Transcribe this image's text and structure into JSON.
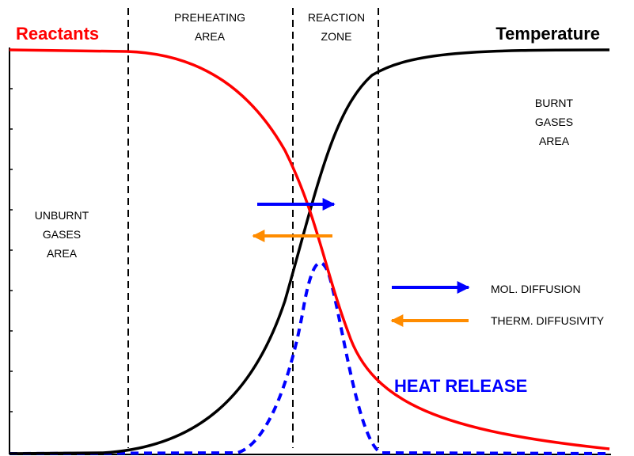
{
  "labels": {
    "reactants": "Reactants",
    "temperature": "Temperature",
    "preheating": [
      "PREHEATING",
      "AREA"
    ],
    "reaction": [
      "REACTION",
      "ZONE"
    ],
    "burnt": [
      "BURNT",
      "GASES",
      "AREA"
    ],
    "unburnt": [
      "UNBURNT",
      "GASES",
      "AREA"
    ],
    "legend": [
      "MOL. DIFFUSION",
      "THERM. DIFFUSIVITY"
    ],
    "heat_release": "HEAT RELEASE"
  }
}
